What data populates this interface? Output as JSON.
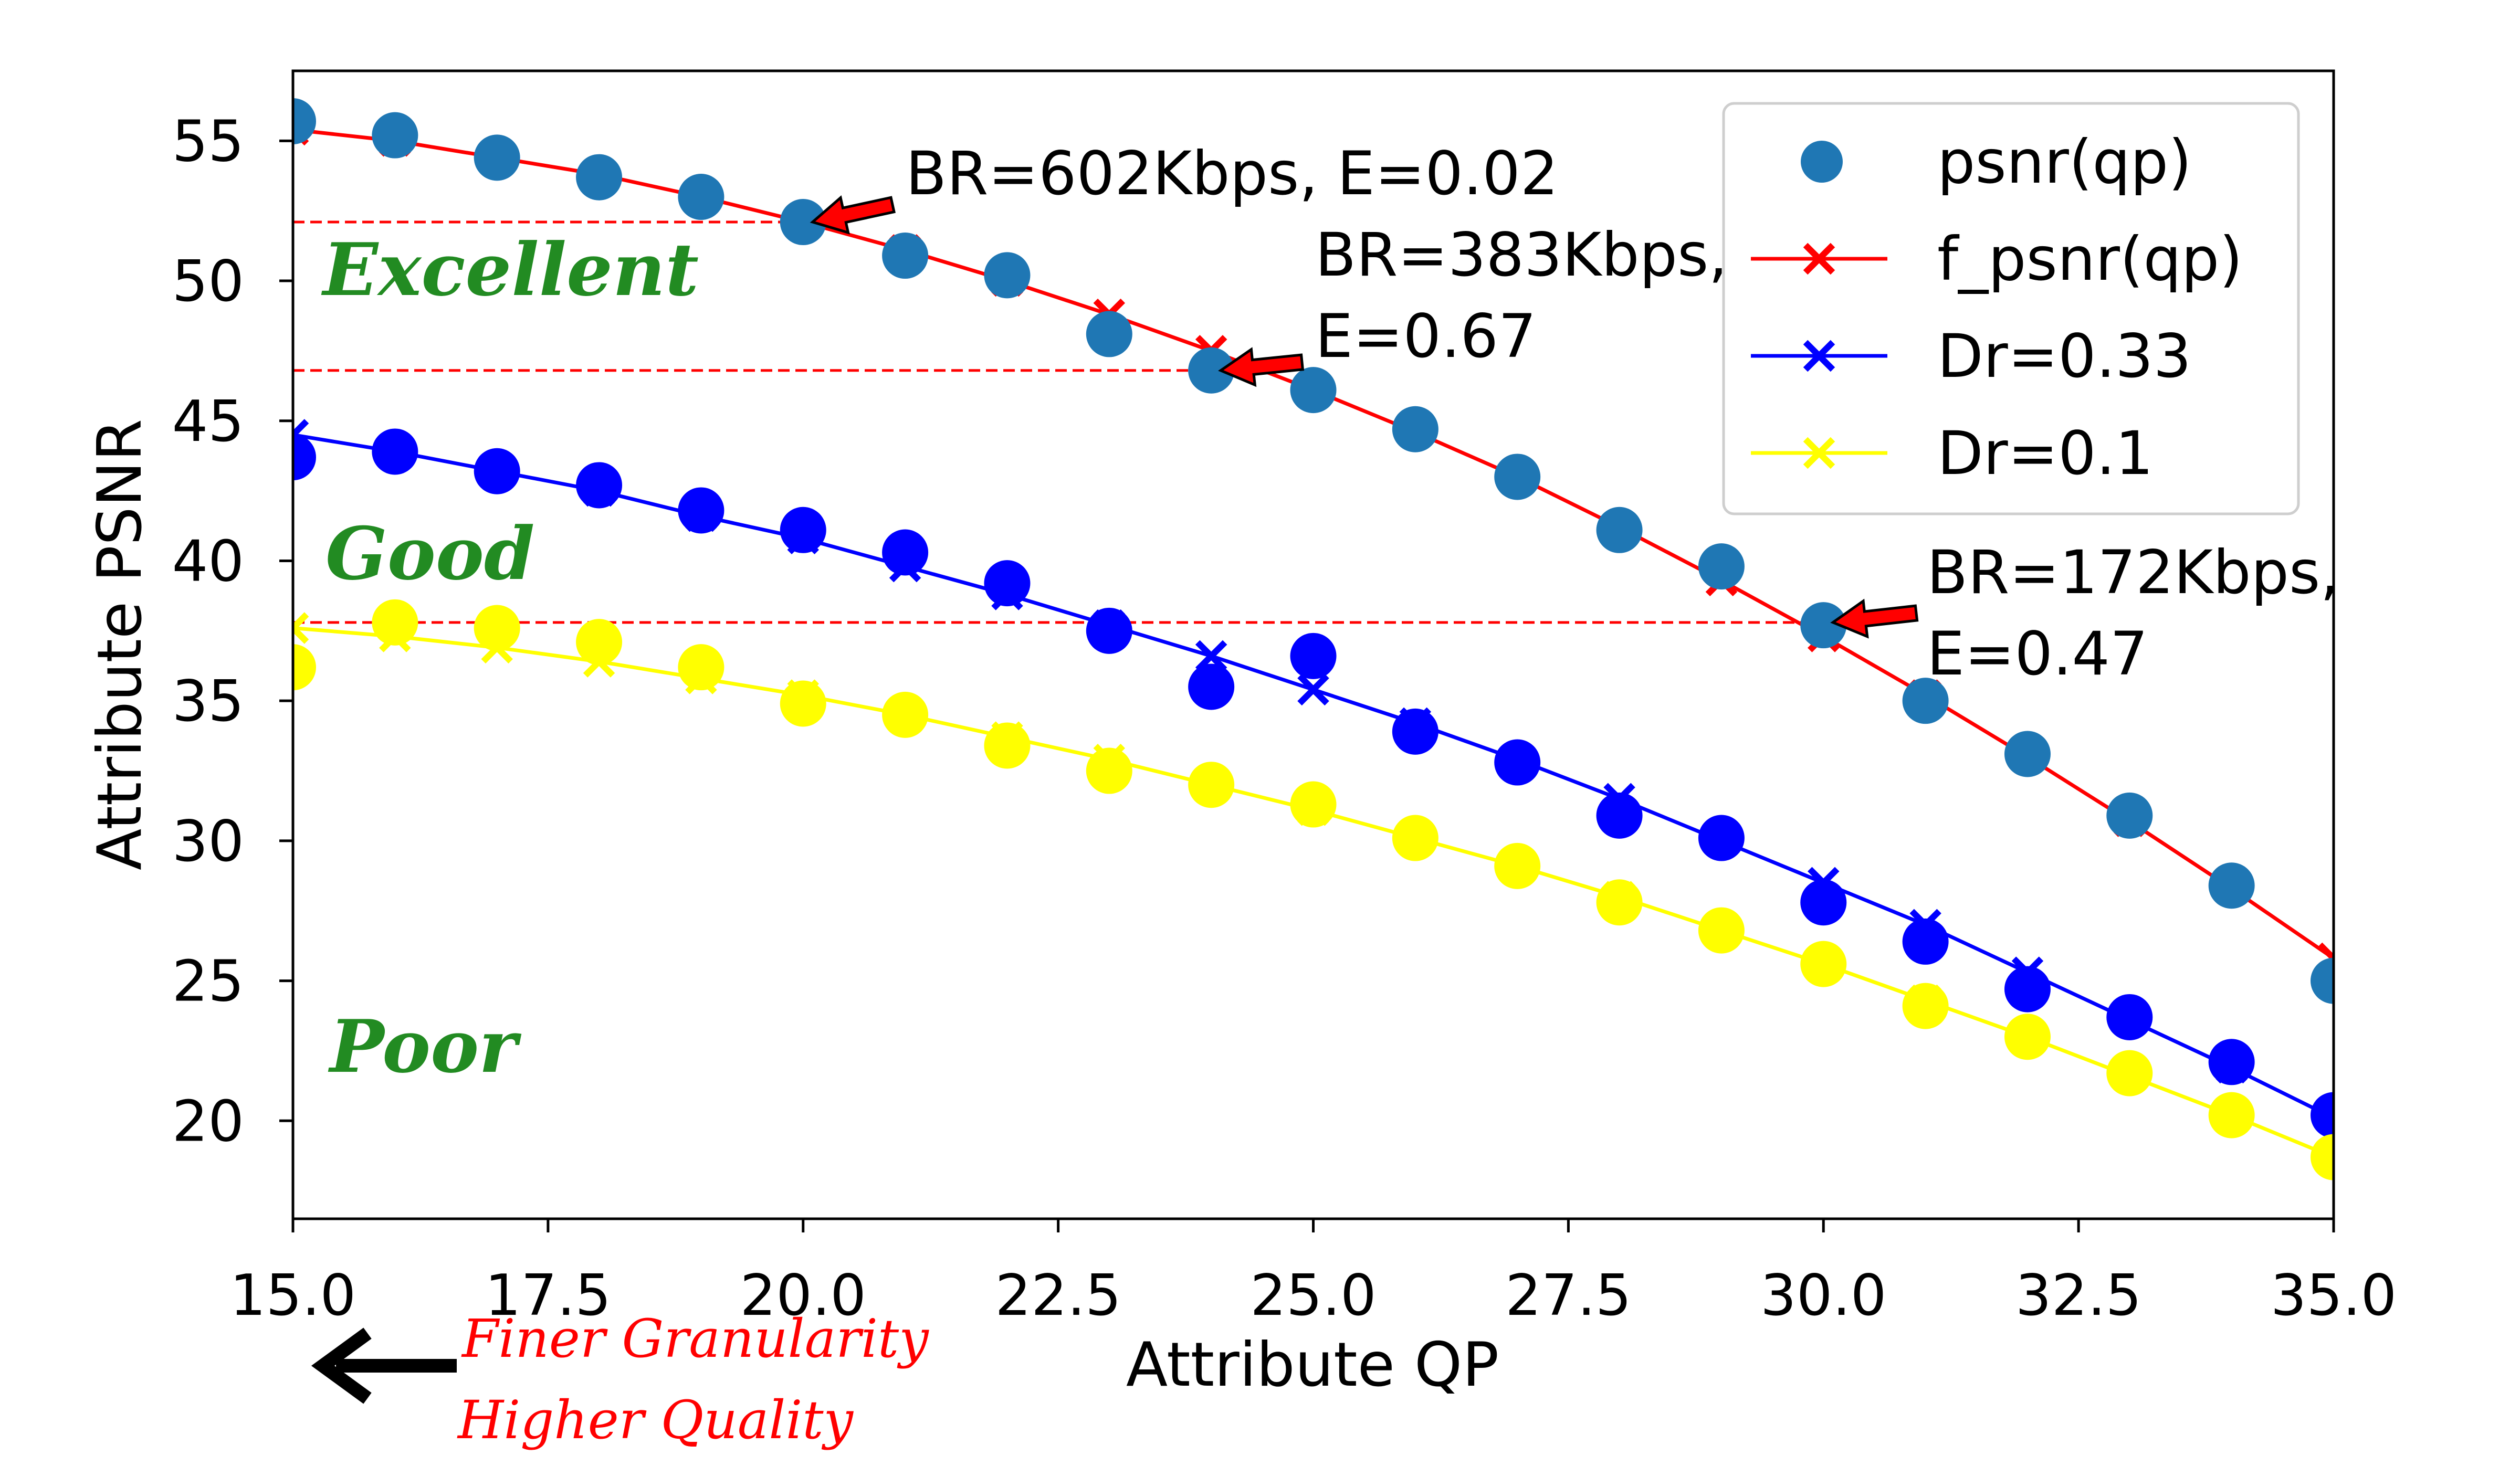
{
  "chart_data": {
    "type": "scatter",
    "xlabel": "Attribute QP",
    "ylabel": "Attribute PSNR",
    "xlim": [
      15.0,
      35.0
    ],
    "ylim": [
      16.5,
      57.5
    ],
    "x_ticks": [
      "15.0",
      "17.5",
      "20.0",
      "22.5",
      "25.0",
      "27.5",
      "30.0",
      "32.5",
      "35.0"
    ],
    "y_ticks": [
      "20",
      "25",
      "30",
      "35",
      "40",
      "45",
      "50",
      "55"
    ],
    "grid": false,
    "legend_position": "top-right",
    "x": [
      15,
      16,
      17,
      18,
      19,
      20,
      21,
      22,
      23,
      24,
      25,
      26,
      27,
      28,
      29,
      30,
      31,
      32,
      33,
      34,
      35
    ],
    "series": [
      {
        "name": "psnr(qp)",
        "kind": "scatter",
        "color": "#1f77b4",
        "values": [
          55.7,
          55.2,
          54.4,
          53.7,
          53.0,
          52.1,
          50.9,
          50.2,
          48.1,
          46.8,
          46.1,
          44.7,
          43.0,
          41.1,
          39.8,
          37.7,
          35.0,
          33.1,
          30.9,
          28.4,
          25.0
        ]
      },
      {
        "name": "f_psnr(qp)",
        "kind": "line-x",
        "color": "#ff0000",
        "values": [
          55.4,
          55.0,
          54.4,
          53.8,
          53.0,
          52.1,
          51.1,
          50.0,
          48.8,
          47.5,
          46.1,
          44.6,
          43.0,
          41.2,
          39.3,
          37.3,
          35.2,
          33.0,
          30.7,
          28.3,
          25.8
        ]
      },
      {
        "name": "Dr=0.33",
        "kind": "line-x",
        "color": "#0000ff",
        "values": [
          44.5,
          43.9,
          43.2,
          42.5,
          41.6,
          40.8,
          39.8,
          38.8,
          37.7,
          36.6,
          35.4,
          34.2,
          32.9,
          31.5,
          30.0,
          28.5,
          27.0,
          25.3,
          23.6,
          21.9,
          20.1
        ],
        "markers": [
          43.7,
          43.9,
          43.2,
          42.7,
          41.8,
          41.1,
          40.3,
          39.2,
          37.5,
          35.5,
          36.6,
          33.9,
          32.8,
          30.9,
          30.1,
          27.8,
          26.4,
          24.7,
          23.7,
          22.1,
          20.2
        ]
      },
      {
        "name": "Dr=0.1",
        "kind": "line-x",
        "color": "#ffff00",
        "values": [
          37.6,
          37.3,
          36.9,
          36.4,
          35.8,
          35.2,
          34.5,
          33.7,
          32.9,
          32.0,
          31.1,
          30.1,
          29.1,
          28.0,
          26.8,
          25.6,
          24.3,
          23.0,
          21.6,
          20.2,
          18.7
        ],
        "markers": [
          36.2,
          37.8,
          37.6,
          37.1,
          36.2,
          34.9,
          34.5,
          33.4,
          32.5,
          32.0,
          31.3,
          30.1,
          29.1,
          27.8,
          26.8,
          25.6,
          24.1,
          23.0,
          21.7,
          20.2,
          18.7
        ]
      }
    ],
    "reference_lines": [
      {
        "y": 52.1,
        "x_end": 20,
        "color": "#ff0000",
        "style": "dashed"
      },
      {
        "y": 46.8,
        "x_end": 24,
        "color": "#ff0000",
        "style": "dashed"
      },
      {
        "y": 37.8,
        "x_end": 30,
        "color": "#ff0000",
        "style": "dashed"
      }
    ],
    "annotations": [
      {
        "lines": [
          "BR=602Kbps, E=0.02"
        ],
        "point": [
          20,
          52.1
        ]
      },
      {
        "lines": [
          "BR=383Kbps,",
          "E=0.67"
        ],
        "point": [
          24,
          46.8
        ]
      },
      {
        "lines": [
          "BR=172Kbps,",
          "E=0.47"
        ],
        "point": [
          30,
          37.8
        ]
      }
    ],
    "regions": [
      {
        "label": "Excellent",
        "color": "#228b22"
      },
      {
        "label": "Good",
        "color": "#228b22"
      },
      {
        "label": "Poor",
        "color": "#228b22"
      }
    ],
    "footnote": {
      "lines": [
        "Finer Granularity",
        "Higher Quality"
      ],
      "color": "#ff0000",
      "arrow": "left-arrow-icon"
    }
  }
}
